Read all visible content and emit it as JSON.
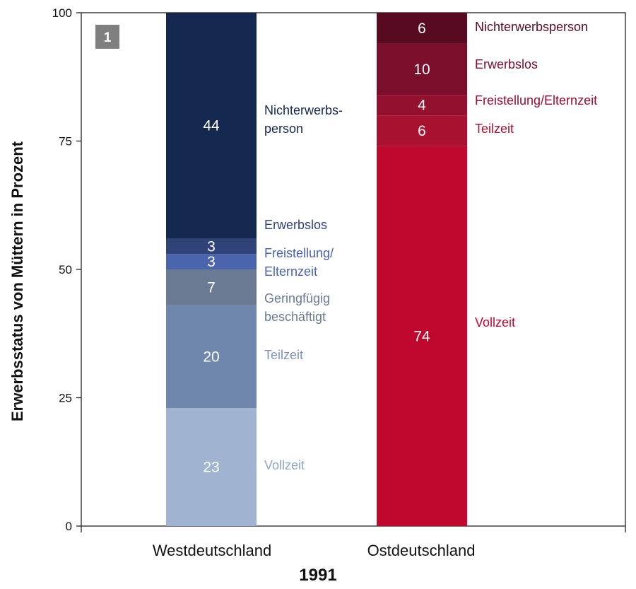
{
  "chart_data": {
    "type": "bar",
    "stacked": true,
    "panel_label": "1",
    "xlabel": "1991",
    "ylabel": "Erwerbsstatus von Müttern in Prozent",
    "ylim": [
      0,
      100
    ],
    "yticks": [
      0,
      25,
      50,
      75,
      100
    ],
    "grid": false,
    "categories": [
      "Westdeutschland",
      "Ostdeutschland"
    ],
    "bars": [
      {
        "category": "Westdeutschland",
        "segments": [
          {
            "label": "Vollzeit",
            "value": 23,
            "color": "#a0b4d2",
            "text_color": "#8fa5c8"
          },
          {
            "label": "Teilzeit",
            "value": 20,
            "color": "#6f86ad",
            "text_color": "#7c93bd"
          },
          {
            "label": "Geringfügig beschäftigt",
            "label_lines": [
              "Geringfügig",
              "beschäftigt"
            ],
            "value": 7,
            "color": "#6b7a93",
            "text_color": "#6b7a93"
          },
          {
            "label": "Freistellung/ Elternzeit",
            "label_lines": [
              "Freistellung/",
              "Elternzeit"
            ],
            "value": 3,
            "color": "#4a63ad",
            "text_color": "#4a63ad"
          },
          {
            "label": "Erwerbslos",
            "value": 3,
            "color": "#2f4379",
            "text_color": "#2f4379"
          },
          {
            "label": "Nichterwerbs- person",
            "label_lines": [
              "Nichterwerbs-",
              "person"
            ],
            "value": 44,
            "color": "#15284f",
            "text_color": "#15284f"
          }
        ]
      },
      {
        "category": "Ostdeutschland",
        "segments": [
          {
            "label": "Vollzeit",
            "value": 74,
            "color": "#c0072d",
            "text_color": "#c0072d"
          },
          {
            "label": "Teilzeit",
            "value": 6,
            "color": "#a8112f",
            "text_color": "#a8112f"
          },
          {
            "label": "Freistellung/Elternzeit",
            "value": 4,
            "color": "#93102f",
            "text_color": "#93102f"
          },
          {
            "label": "Erwerbslos",
            "value": 10,
            "color": "#7a0e2b",
            "text_color": "#7a0e2b"
          },
          {
            "label": "Nichterwerbsperson",
            "value": 6,
            "color": "#570a20",
            "text_color": "#570a20"
          }
        ]
      }
    ]
  }
}
